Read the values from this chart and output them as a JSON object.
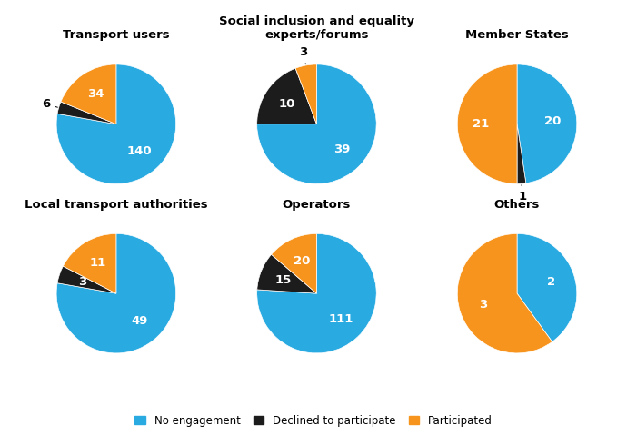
{
  "charts": [
    {
      "title": "Transport users",
      "values": [
        140,
        6,
        34
      ],
      "colors": [
        "#29ABE2",
        "#1C1C1C",
        "#F7941D"
      ],
      "label_values": [
        "140",
        "6",
        "34"
      ],
      "outside_labels": [
        false,
        true,
        false
      ]
    },
    {
      "title": "Social inclusion and equality\nexperts/forums",
      "values": [
        39,
        10,
        3
      ],
      "colors": [
        "#29ABE2",
        "#1C1C1C",
        "#F7941D"
      ],
      "label_values": [
        "39",
        "10",
        "3"
      ],
      "outside_labels": [
        false,
        false,
        true
      ]
    },
    {
      "title": "Member States",
      "values": [
        20,
        1,
        21
      ],
      "colors": [
        "#29ABE2",
        "#1C1C1C",
        "#F7941D"
      ],
      "label_values": [
        "20",
        "1",
        "21"
      ],
      "outside_labels": [
        false,
        true,
        false
      ]
    },
    {
      "title": "Local transport authorities",
      "values": [
        49,
        3,
        11
      ],
      "colors": [
        "#29ABE2",
        "#1C1C1C",
        "#F7941D"
      ],
      "label_values": [
        "49",
        "3",
        "11"
      ],
      "outside_labels": [
        false,
        false,
        false
      ]
    },
    {
      "title": "Operators",
      "values": [
        111,
        15,
        20
      ],
      "colors": [
        "#29ABE2",
        "#1C1C1C",
        "#F7941D"
      ],
      "label_values": [
        "111",
        "15",
        "20"
      ],
      "outside_labels": [
        false,
        false,
        false
      ]
    },
    {
      "title": "Others",
      "values": [
        2,
        0,
        3
      ],
      "colors": [
        "#29ABE2",
        "#1C1C1C",
        "#F7941D"
      ],
      "label_values": [
        "2",
        "",
        "3"
      ],
      "outside_labels": [
        false,
        false,
        false
      ]
    }
  ],
  "legend_labels": [
    "No engagement",
    "Declined to participate",
    "Participated"
  ],
  "legend_colors": [
    "#29ABE2",
    "#1C1C1C",
    "#F7941D"
  ],
  "background_color": "#FFFFFF",
  "title_fontsize": 9.5,
  "value_fontsize": 9.5
}
